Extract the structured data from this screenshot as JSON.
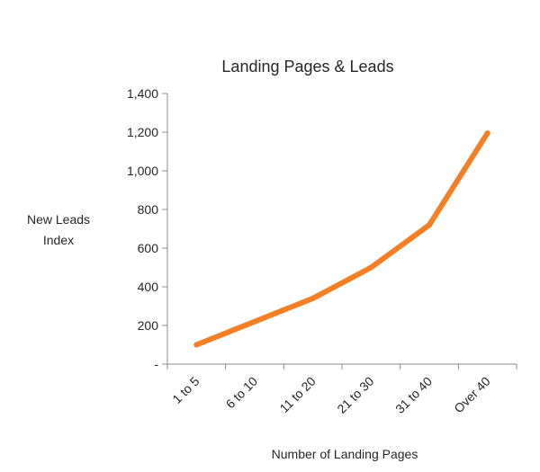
{
  "chart_data": {
    "type": "line",
    "title": "Landing Pages & Leads",
    "xlabel": "Number of Landing Pages",
    "ylabel_lines": [
      "New Leads",
      "Index"
    ],
    "categories": [
      "1 to 5",
      "6 to 10",
      "11 to 20",
      "21 to 30",
      "31 to 40",
      "Over 40"
    ],
    "series": [
      {
        "values": [
          100,
          220,
          340,
          500,
          720,
          1195
        ]
      }
    ],
    "ylim": [
      0,
      1400
    ],
    "yticks": [
      {
        "value": 0,
        "label": "-"
      },
      {
        "value": 200,
        "label": "200"
      },
      {
        "value": 400,
        "label": "400"
      },
      {
        "value": 600,
        "label": "600"
      },
      {
        "value": 800,
        "label": "800"
      },
      {
        "value": 1000,
        "label": "1,000"
      },
      {
        "value": 1200,
        "label": "1,200"
      },
      {
        "value": 1400,
        "label": "1,400"
      }
    ],
    "grid": false,
    "legend": "none",
    "line_color": "#F47F24",
    "axis_color": "#8C8C8C"
  }
}
